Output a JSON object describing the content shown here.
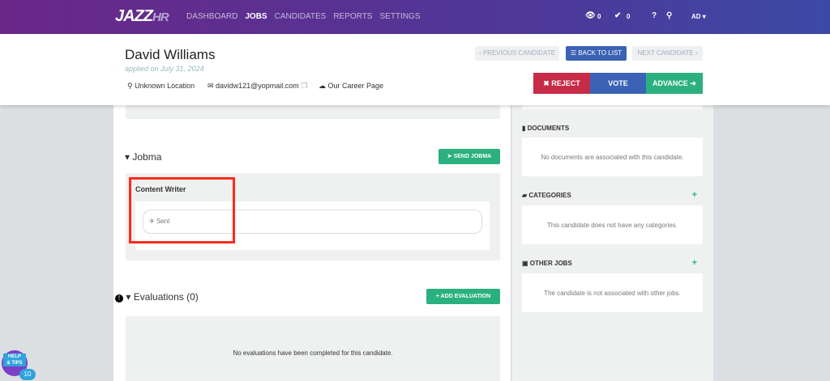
{
  "nav": {
    "logo_main": "JAZZ",
    "logo_sub": "HR",
    "items": [
      "DASHBOARD",
      "JOBS",
      "CANDIDATES",
      "REPORTS",
      "SETTINGS"
    ],
    "active": "JOBS",
    "views": "0",
    "checks": "0",
    "user": "AD"
  },
  "candidate": {
    "name": "David Williams",
    "applied": "applied on July 31, 2024",
    "location": "Unknown Location",
    "email": "davidw121@yopmail.com",
    "source": "Our Career Page"
  },
  "actions": {
    "previous": "PREVIOUS CANDIDATE",
    "back": "BACK TO LIST",
    "next": "NEXT CANDIDATE",
    "reject": "REJECT",
    "vote": "VOTE",
    "advance": "ADVANCE"
  },
  "jobma": {
    "title": "Jobma",
    "send": "SEND JOBMA",
    "job": "Content Writer",
    "status": "Sent"
  },
  "evaluations": {
    "title": "Evaluations (0)",
    "add": "ADD EVALUATION",
    "empty": "No evaluations have been completed for this candidate."
  },
  "sidebar": {
    "documents": {
      "title": "DOCUMENTS",
      "empty": "No documents are associated with this candidate."
    },
    "categories": {
      "title": "CATEGORIES",
      "empty": "This candidate does not have any categories."
    },
    "other_jobs": {
      "title": "OTHER JOBS",
      "empty": "The candidate is not associated with other jobs."
    }
  },
  "help": {
    "label1": "HELP",
    "label2": "& TIPS",
    "count": "10"
  },
  "colors": {
    "highlight": "#ff2a1a",
    "reject": "#c62b47",
    "vote": "#3b62b4",
    "advance": "#2bb07f"
  }
}
